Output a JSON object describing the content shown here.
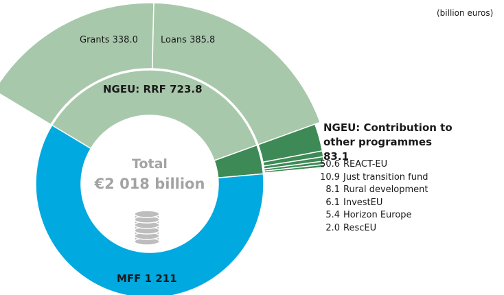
{
  "chart_data": {
    "type": "sunburst",
    "unit_note": "(billion euros)",
    "center_title": "Total",
    "center_label": "€2 018 billion",
    "segments": [
      {
        "name": "NGEU: RRF",
        "value": 723.8,
        "value_label": "723.8",
        "color": "#a8c8ab",
        "children": [
          {
            "name": "Grants",
            "value": 338.0,
            "value_label": "338.0"
          },
          {
            "name": "Loans",
            "value": 385.8,
            "value_label": "385.8"
          }
        ]
      },
      {
        "name": "NGEU:  Contribution to other programmes",
        "value": 83.1,
        "value_label": "83.1",
        "color": "#3e8a56",
        "children": [
          {
            "name": "REACT-EU",
            "value": 50.6,
            "value_label": "50.6"
          },
          {
            "name": "Just transition fund",
            "value": 10.9,
            "value_label": "10.9"
          },
          {
            "name": "Rural development",
            "value": 8.1,
            "value_label": "8.1"
          },
          {
            "name": "InvestEU",
            "value": 6.1,
            "value_label": "6.1"
          },
          {
            "name": "Horizon Europe",
            "value": 5.4,
            "value_label": "5.4"
          },
          {
            "name": "RescEU",
            "value": 2.0,
            "value_label": "2.0"
          }
        ]
      },
      {
        "name": "MFF",
        "value": 1211,
        "value_label": "1 211",
        "color": "#00a9e0",
        "children": []
      }
    ]
  }
}
